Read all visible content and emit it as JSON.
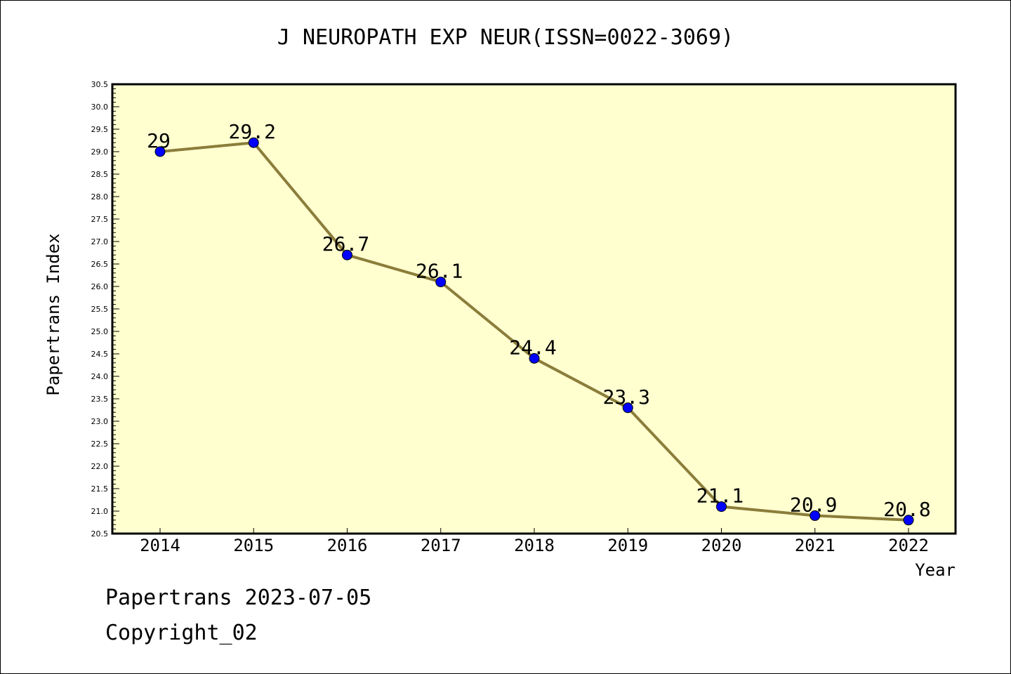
{
  "chart_data": {
    "type": "line",
    "title": "J NEUROPATH EXP NEUR(ISSN=0022-3069)",
    "xlabel": "Year",
    "ylabel": "Papertrans Index",
    "x": [
      "2014",
      "2015",
      "2016",
      "2017",
      "2018",
      "2019",
      "2020",
      "2021",
      "2022"
    ],
    "values": [
      29,
      29.2,
      26.7,
      26.1,
      24.4,
      23.3,
      21.1,
      20.9,
      20.8
    ],
    "data_labels": [
      "29",
      "29.2",
      "26.7",
      "26.1",
      "24.4",
      "23.3",
      "21.1",
      "20.9",
      "20.8"
    ],
    "ylim": [
      20.5,
      30.5
    ],
    "yticks": [
      "20.5",
      "21.0",
      "21.5",
      "22.0",
      "22.5",
      "23.0",
      "23.5",
      "24.0",
      "24.5",
      "25.0",
      "25.5",
      "26.0",
      "26.5",
      "27.0",
      "27.5",
      "28.0",
      "28.5",
      "29.0",
      "29.5",
      "30.0",
      "30.5"
    ],
    "grid": false,
    "colors": {
      "plot_background": "#ffffd0",
      "line": "#8b7d3a",
      "marker": "#0000ff"
    }
  },
  "footer": {
    "date": "Papertrans 2023-07-05",
    "copyright": "Copyright_02"
  }
}
